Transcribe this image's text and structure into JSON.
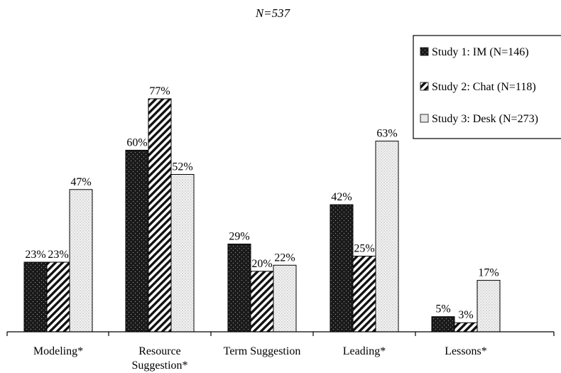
{
  "chart_data": {
    "type": "bar",
    "title": "N=537",
    "categories": [
      "Modeling*",
      "Resource Suggestion*",
      "Term Suggestion",
      "Leading*",
      "Lessons*"
    ],
    "series": [
      {
        "name": "Study 1: IM (N=146)",
        "values": [
          23,
          60,
          29,
          42,
          5
        ],
        "labels": [
          "23%",
          "60%",
          "29%",
          "42%",
          "5%"
        ],
        "color": "#1a1a1a",
        "pattern": "dark-dotted"
      },
      {
        "name": "Study 2: Chat (N=118)",
        "values": [
          23,
          77,
          20,
          25,
          3
        ],
        "labels": [
          "23%",
          "77%",
          "20%",
          "25%",
          "3%"
        ],
        "color": "#ffffff",
        "pattern": "diagonal-hatch"
      },
      {
        "name": "Study 3: Desk (N=273)",
        "values": [
          47,
          52,
          22,
          63,
          17
        ],
        "labels": [
          "47%",
          "52%",
          "22%",
          "63%",
          "17%"
        ],
        "color": "#e6e6e6",
        "pattern": "light-stipple"
      }
    ],
    "ylim": [
      0,
      80
    ],
    "xlabel": "",
    "ylabel": "",
    "grid": false,
    "legend_position": "top-right"
  }
}
